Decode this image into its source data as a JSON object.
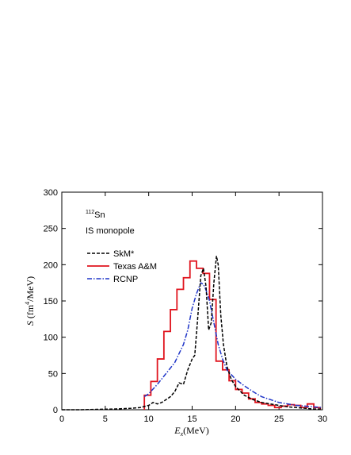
{
  "chart_data": {
    "type": "line",
    "xlabel": "E_x(MeV)",
    "ylabel": "S (fm^4/MeV)",
    "xlim": [
      0,
      30
    ],
    "ylim": [
      0,
      300
    ],
    "xticks": [
      0,
      5,
      10,
      15,
      20,
      25,
      30
    ],
    "yticks": [
      0,
      50,
      100,
      150,
      200,
      250,
      300
    ],
    "grid": false,
    "legend_position": "upper-left",
    "annotations": {
      "nucleus_mass": "112",
      "nucleus_symbol": "Sn",
      "mode": "IS monopole"
    },
    "series": [
      {
        "name": "SkM*",
        "style": "dashed",
        "color": "#000000",
        "x": [
          0,
          2,
          4,
          6,
          8,
          9,
          10,
          10.5,
          11,
          11.5,
          12,
          12.5,
          13,
          13.5,
          14,
          14.5,
          15,
          15.3,
          15.6,
          16,
          16.3,
          16.6,
          16.9,
          17.2,
          17.5,
          17.8,
          18,
          18.3,
          18.6,
          19,
          19.5,
          20,
          21,
          22,
          23,
          24,
          25,
          26,
          27,
          28,
          29,
          30
        ],
        "y": [
          0,
          0,
          0.5,
          1,
          2,
          3,
          6,
          10,
          8,
          10,
          14,
          18,
          25,
          37,
          35,
          55,
          70,
          75,
          120,
          185,
          195,
          170,
          110,
          120,
          175,
          212,
          200,
          130,
          90,
          60,
          42,
          32,
          20,
          14,
          10,
          8,
          6,
          4,
          3,
          2,
          1,
          1
        ]
      },
      {
        "name": "Texas A&M",
        "style": "histogram",
        "color": "#e0141e",
        "bin_width": 0.75,
        "bin_start": [
          9.5,
          10.25,
          11,
          11.75,
          12.5,
          13.25,
          14,
          14.75,
          15.5,
          16.25,
          17,
          17.75,
          18.5,
          19.25,
          20,
          20.75,
          21.5,
          22.25,
          23,
          23.75,
          24.5,
          25.25,
          26,
          26.75,
          27.5,
          28.25,
          29
        ],
        "values": [
          20,
          39,
          70,
          108,
          138,
          166,
          182,
          205,
          195,
          188,
          152,
          67,
          55,
          40,
          28,
          23,
          15,
          10,
          8,
          6,
          3,
          5,
          7,
          6,
          3,
          8,
          3
        ]
      },
      {
        "name": "RCNP",
        "style": "dash-dot",
        "color": "#1f35c8",
        "x": [
          9.5,
          10,
          11,
          12,
          13,
          14,
          14.5,
          15,
          15.5,
          16,
          16.3,
          16.6,
          17,
          17.5,
          18,
          18.5,
          19,
          20,
          21,
          22,
          23,
          24,
          25,
          26,
          27,
          28,
          29,
          30
        ],
        "y": [
          18,
          22,
          35,
          50,
          65,
          90,
          110,
          140,
          160,
          175,
          173,
          165,
          150,
          120,
          90,
          70,
          55,
          42,
          33,
          25,
          18,
          14,
          10,
          8,
          6,
          5,
          4,
          3
        ]
      }
    ]
  }
}
